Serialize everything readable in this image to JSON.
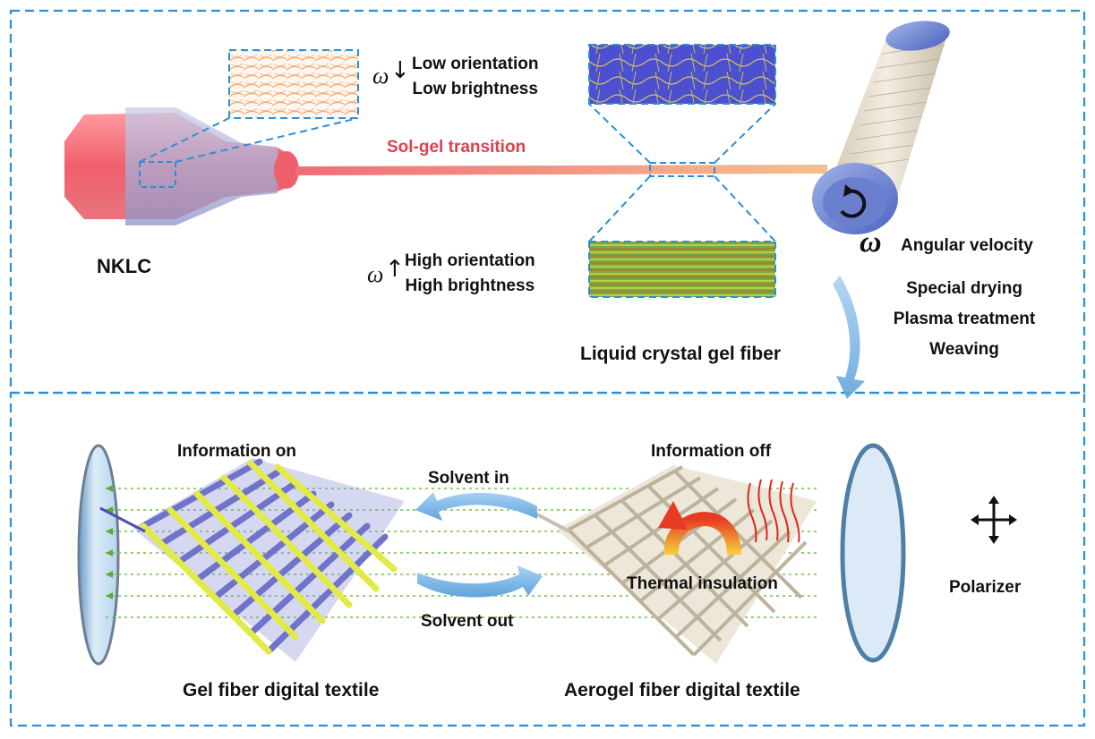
{
  "top": {
    "nklc_label": "NKLC",
    "sol_gel_label": "Sol-gel transition",
    "low": {
      "symbol": "ω",
      "arrow": "↓",
      "line1": "Low orientation",
      "line2": "Low brightness"
    },
    "high": {
      "symbol": "ω",
      "arrow": "↑",
      "line1": "High orientation",
      "line2": "High brightness"
    },
    "angular": {
      "symbol": "ω",
      "label": "Angular velocity"
    },
    "steps": [
      "Special drying",
      "Plasma treatment",
      "Weaving"
    ],
    "fiber_label": "Liquid crystal gel fiber"
  },
  "bottom": {
    "info_on": "Information on",
    "info_off": "Information off",
    "solvent_in": "Solvent in",
    "solvent_out": "Solvent out",
    "thermal": "Thermal insulation",
    "polarizer": "Polarizer",
    "gel_textile": "Gel fiber digital textile",
    "aerogel_textile": "Aerogel fiber digital textile"
  },
  "colors": {
    "frame": "#2b8fd6",
    "nozzle": "#f06d78",
    "fiber": "#f2b089",
    "gel_fiber_blue": "#6f74c9",
    "gel_fiber_yellow": "#e2ea45",
    "aerogel_fiber": "#e9e3d6",
    "flow_arrow": "#7fb6e6",
    "heat_arrow": "#e8532a",
    "light_dots": "#6fbf4a"
  },
  "icons": [
    "rotation-arrow-icon",
    "direction-cross-icon",
    "heat-arrow-icon",
    "heat-wave-icon"
  ]
}
